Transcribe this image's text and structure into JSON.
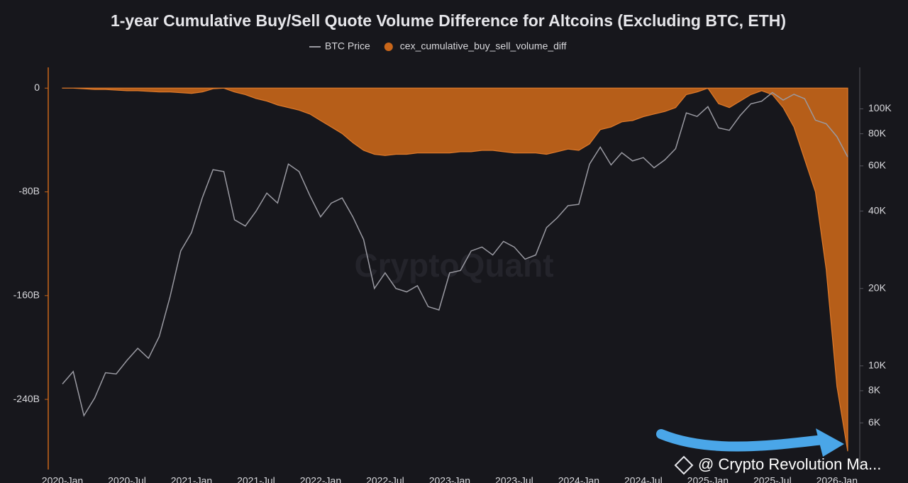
{
  "chart_data": {
    "type": "area-line",
    "title": "1-year Cumulative Buy/Sell Quote Volume Difference for Altcoins (Excluding BTC, ETH)",
    "watermark": "CryptoQuant",
    "overlay_text": "@ Crypto Revolution Ma...",
    "categories": [
      "2020-Jan",
      null,
      null,
      null,
      null,
      null,
      "2020-Jul",
      null,
      null,
      null,
      null,
      null,
      "2021-Jan",
      null,
      null,
      null,
      null,
      null,
      "2021-Jul",
      null,
      null,
      null,
      null,
      null,
      "2022-Jan",
      null,
      null,
      null,
      null,
      null,
      "2022-Jul",
      null,
      null,
      null,
      null,
      null,
      "2023-Jan",
      null,
      null,
      null,
      null,
      null,
      "2023-Jul",
      null,
      null,
      null,
      null,
      null,
      "2024-Jan",
      null,
      null,
      null,
      null,
      null,
      "2024-Jul",
      null,
      null,
      null,
      null,
      null,
      "2025-Jan",
      null,
      null,
      null,
      null,
      null,
      "2025-Jul",
      null,
      null,
      null,
      null,
      null,
      "2026-Jan",
      null
    ],
    "series": [
      {
        "name": "BTC Price",
        "color": "#9a9aa2",
        "axis": "y2",
        "values": [
          8500,
          9500,
          6400,
          7500,
          9400,
          9300,
          10500,
          11700,
          10700,
          13000,
          18500,
          28000,
          33000,
          45000,
          58000,
          57000,
          37000,
          35000,
          40000,
          47000,
          43000,
          61000,
          57000,
          46000,
          38000,
          43000,
          45000,
          38000,
          31000,
          20000,
          23000,
          20000,
          19400,
          20500,
          17000,
          16500,
          23000,
          23500,
          28000,
          29000,
          27000,
          30500,
          29000,
          26000,
          27000,
          34500,
          37700,
          42000,
          42500,
          61000,
          71000,
          60500,
          67500,
          62700,
          64600,
          59000,
          63300,
          70000,
          96400,
          93400,
          102000,
          84300,
          82500,
          94200,
          104600,
          107100,
          115700,
          108200,
          114000,
          109500,
          90400,
          87500,
          78000,
          65000
        ]
      },
      {
        "name": "cex_cumulative_buy_sell_volume_diff",
        "color": "#c8661a",
        "values": [
          0,
          0,
          -0.5,
          -1,
          -1,
          -1.5,
          -2,
          -2,
          -2.5,
          -3,
          -3,
          -3.5,
          -4,
          -3,
          -0.5,
          0,
          -3,
          -5,
          -8,
          -10,
          -13,
          -15,
          -17,
          -20,
          -25,
          -30,
          -35,
          -42,
          -48,
          -51,
          -52,
          -51,
          -51,
          -50,
          -50,
          -50,
          -50,
          -49,
          -49,
          -48,
          -48,
          -49,
          -50,
          -50,
          -50,
          -51,
          -49,
          -47,
          -48,
          -43,
          -32,
          -30,
          -26,
          -25,
          -22,
          -20,
          -18,
          -15,
          -5,
          -3,
          0,
          -12,
          -15,
          -10,
          -5,
          -2,
          -5,
          -15,
          -30,
          -55,
          -80,
          -140,
          -230,
          -280
        ]
      }
    ],
    "ylim": [
      -293,
      16
    ],
    "yticks": [
      0,
      {
        "value": -80,
        "label": "-80B"
      },
      {
        "value": -160,
        "label": "-160B"
      },
      {
        "value": -240,
        "label": "-240B"
      }
    ],
    "y2lim": [
      4000,
      145000
    ],
    "y2log": true,
    "y2ticks": [
      {
        "value": 6000,
        "label": "6K"
      },
      {
        "value": 8000,
        "label": "8K"
      },
      {
        "value": 10000,
        "label": "10K"
      },
      {
        "value": 20000,
        "label": "20K"
      },
      {
        "value": 40000,
        "label": "40K"
      },
      {
        "value": 60000,
        "label": "60K"
      },
      {
        "value": 80000,
        "label": "80K"
      },
      {
        "value": 100000,
        "label": "100K"
      }
    ]
  }
}
